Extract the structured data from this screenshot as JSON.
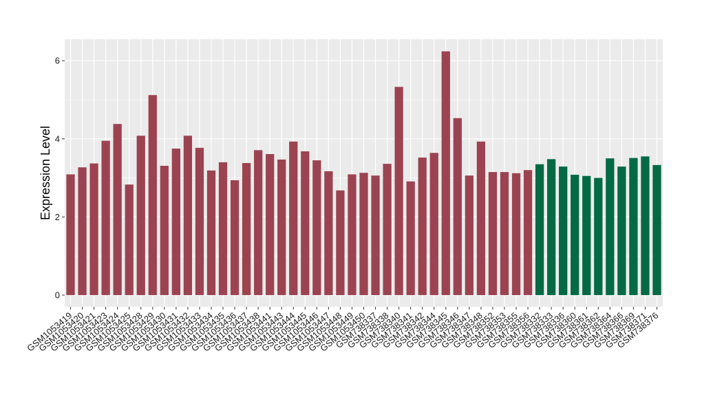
{
  "chart_data": {
    "type": "bar",
    "ylabel": "Expression Level",
    "xlabel": "",
    "ylim": [
      -0.3,
      6.55
    ],
    "yticks": [
      0,
      2,
      4,
      6
    ],
    "grid": true,
    "background": "#ebebeb",
    "gridline_color": "#ffffff",
    "series_colors": {
      "group1": "#9c4351",
      "group2": "#046a45"
    },
    "categories": [
      "GSM1053419",
      "GSM1053420",
      "GSM1053421",
      "GSM1053423",
      "GSM1053424",
      "GSM1053425",
      "GSM1053428",
      "GSM1053429",
      "GSM1053430",
      "GSM1053431",
      "GSM1053432",
      "GSM1053433",
      "GSM1053434",
      "GSM1053435",
      "GSM1053436",
      "GSM1053437",
      "GSM1053438",
      "GSM1053441",
      "GSM1053443",
      "GSM1053444",
      "GSM1053445",
      "GSM1053446",
      "GSM1053447",
      "GSM1053448",
      "GSM1053449",
      "GSM1053450",
      "GSM738337",
      "GSM738338",
      "GSM738340",
      "GSM738341",
      "GSM738342",
      "GSM738344",
      "GSM738345",
      "GSM738346",
      "GSM738347",
      "GSM738348",
      "GSM738352",
      "GSM738353",
      "GSM738355",
      "GSM738356",
      "GSM738332",
      "GSM738333",
      "GSM738336",
      "GSM738360",
      "GSM738361",
      "GSM738362",
      "GSM738364",
      "GSM738366",
      "GSM738369",
      "GSM738371",
      "GSM738376"
    ],
    "values": [
      3.09,
      3.27,
      3.37,
      3.95,
      4.38,
      2.83,
      4.08,
      5.12,
      3.31,
      3.75,
      4.08,
      3.77,
      3.19,
      3.4,
      2.94,
      3.38,
      3.71,
      3.61,
      3.47,
      3.93,
      3.68,
      3.45,
      3.17,
      2.68,
      3.09,
      3.13,
      3.06,
      3.36,
      5.33,
      2.91,
      3.52,
      3.64,
      6.24,
      4.53,
      3.06,
      3.93,
      3.15,
      3.15,
      3.12,
      3.2,
      3.35,
      3.48,
      3.29,
      3.08,
      3.05,
      3.0,
      3.5,
      3.29,
      3.51,
      3.55,
      3.33
    ],
    "groups": [
      1,
      1,
      1,
      1,
      1,
      1,
      1,
      1,
      1,
      1,
      1,
      1,
      1,
      1,
      1,
      1,
      1,
      1,
      1,
      1,
      1,
      1,
      1,
      1,
      1,
      1,
      1,
      1,
      1,
      1,
      1,
      1,
      1,
      1,
      1,
      1,
      1,
      1,
      1,
      1,
      2,
      2,
      2,
      2,
      2,
      2,
      2,
      2,
      2,
      2,
      2
    ]
  }
}
